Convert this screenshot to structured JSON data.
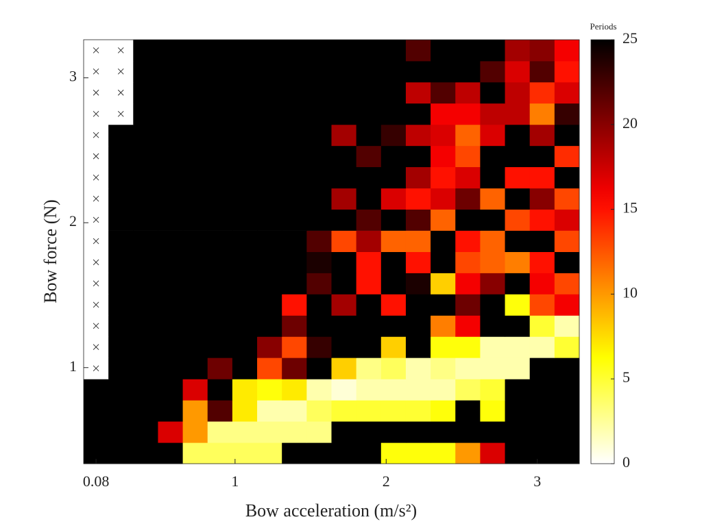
{
  "chart_data": {
    "type": "heatmap",
    "xlabel": "Bow acceleration (m/s²)",
    "ylabel": "Bow force (N)",
    "colorbar_label": "Periods",
    "colormap": "hot_r",
    "x": [
      0.08,
      0.244,
      0.408,
      0.572,
      0.736,
      0.9,
      1.064,
      1.228,
      1.392,
      1.556,
      1.72,
      1.884,
      2.048,
      2.212,
      2.376,
      2.54,
      2.704,
      2.868,
      3.032,
      3.196
    ],
    "y": [
      0.41,
      0.556,
      0.703,
      0.849,
      0.995,
      1.142,
      1.288,
      1.434,
      1.581,
      1.727,
      1.873,
      2.02,
      2.166,
      2.312,
      2.459,
      2.605,
      2.751,
      2.898,
      3.044,
      3.19
    ],
    "xlim": [
      -0.002,
      3.278
    ],
    "ylim": [
      0.337,
      3.263
    ],
    "xticks": [
      0.08,
      1,
      2,
      3
    ],
    "yticks": [
      1,
      2,
      3
    ],
    "zlim": [
      0,
      25
    ],
    "zticks": [
      0,
      5,
      10,
      15,
      20,
      25
    ],
    "values": [
      [
        25,
        25,
        25,
        25,
        4,
        4,
        4,
        4,
        25,
        25,
        25,
        25,
        6,
        6,
        6,
        10,
        17,
        25,
        25,
        25
      ],
      [
        25,
        25,
        25,
        17,
        10,
        3,
        3,
        3,
        3,
        3,
        25,
        25,
        25,
        25,
        25,
        25,
        25,
        25,
        25,
        25
      ],
      [
        25,
        25,
        25,
        25,
        10,
        22,
        7,
        2,
        2,
        4,
        5,
        5,
        5,
        5,
        6,
        25,
        6,
        25,
        25,
        25
      ],
      [
        25,
        25,
        25,
        25,
        17,
        25,
        7,
        6,
        7,
        2,
        1,
        2,
        2,
        2,
        2,
        4,
        5,
        25,
        25,
        25
      ],
      [
        null,
        25,
        25,
        25,
        25,
        21,
        25,
        13,
        21,
        25,
        8,
        3,
        4,
        2,
        3,
        2,
        2,
        2,
        25,
        25
      ],
      [
        null,
        25,
        25,
        25,
        25,
        25,
        25,
        20,
        13,
        23,
        25,
        25,
        8,
        25,
        6,
        6,
        2,
        2,
        2,
        5
      ],
      [
        null,
        25,
        25,
        25,
        25,
        25,
        25,
        25,
        21,
        25,
        25,
        25,
        25,
        25,
        11,
        16,
        25,
        25,
        5,
        2
      ],
      [
        null,
        25,
        25,
        25,
        25,
        25,
        25,
        25,
        15,
        25,
        19,
        25,
        15,
        25,
        25,
        21,
        25,
        6,
        13,
        16
      ],
      [
        null,
        25,
        25,
        25,
        25,
        25,
        25,
        25,
        25,
        22,
        25,
        15,
        25,
        24,
        8,
        16,
        20,
        25,
        16,
        13
      ],
      [
        null,
        25,
        25,
        25,
        25,
        25,
        25,
        25,
        25,
        24,
        25,
        15,
        25,
        15,
        25,
        13,
        12,
        11,
        15,
        25
      ],
      [
        null,
        25,
        25,
        25,
        25,
        25,
        25,
        25,
        25,
        22,
        13,
        19,
        12,
        12,
        25,
        15,
        12,
        25,
        25,
        13
      ],
      [
        null,
        25,
        25,
        25,
        25,
        25,
        25,
        25,
        25,
        25,
        25,
        22,
        25,
        22,
        12,
        25,
        25,
        13,
        15,
        17
      ],
      [
        null,
        25,
        25,
        25,
        25,
        25,
        25,
        25,
        25,
        25,
        19,
        25,
        17,
        15,
        17,
        21,
        12,
        25,
        20,
        13
      ],
      [
        null,
        25,
        25,
        25,
        25,
        25,
        25,
        25,
        25,
        25,
        25,
        25,
        25,
        19,
        15,
        17,
        25,
        15,
        15,
        25
      ],
      [
        null,
        25,
        25,
        25,
        25,
        25,
        25,
        25,
        25,
        25,
        25,
        22,
        25,
        25,
        16,
        13,
        25,
        25,
        25,
        14
      ],
      [
        null,
        25,
        25,
        25,
        25,
        25,
        25,
        25,
        25,
        25,
        19,
        25,
        23,
        18,
        17,
        12,
        17,
        25,
        19,
        25
      ],
      [
        null,
        null,
        25,
        25,
        25,
        25,
        25,
        25,
        25,
        25,
        25,
        25,
        25,
        25,
        16,
        16,
        18,
        18,
        11,
        23
      ],
      [
        null,
        null,
        25,
        25,
        25,
        25,
        25,
        25,
        25,
        25,
        25,
        25,
        25,
        18,
        22,
        18,
        25,
        18,
        14,
        17
      ],
      [
        null,
        null,
        25,
        25,
        25,
        25,
        25,
        25,
        25,
        25,
        25,
        25,
        25,
        25,
        25,
        25,
        22,
        17,
        22,
        15
      ],
      [
        null,
        null,
        25,
        25,
        25,
        25,
        25,
        25,
        25,
        25,
        25,
        25,
        25,
        22,
        25,
        25,
        25,
        19,
        20,
        16
      ]
    ]
  }
}
